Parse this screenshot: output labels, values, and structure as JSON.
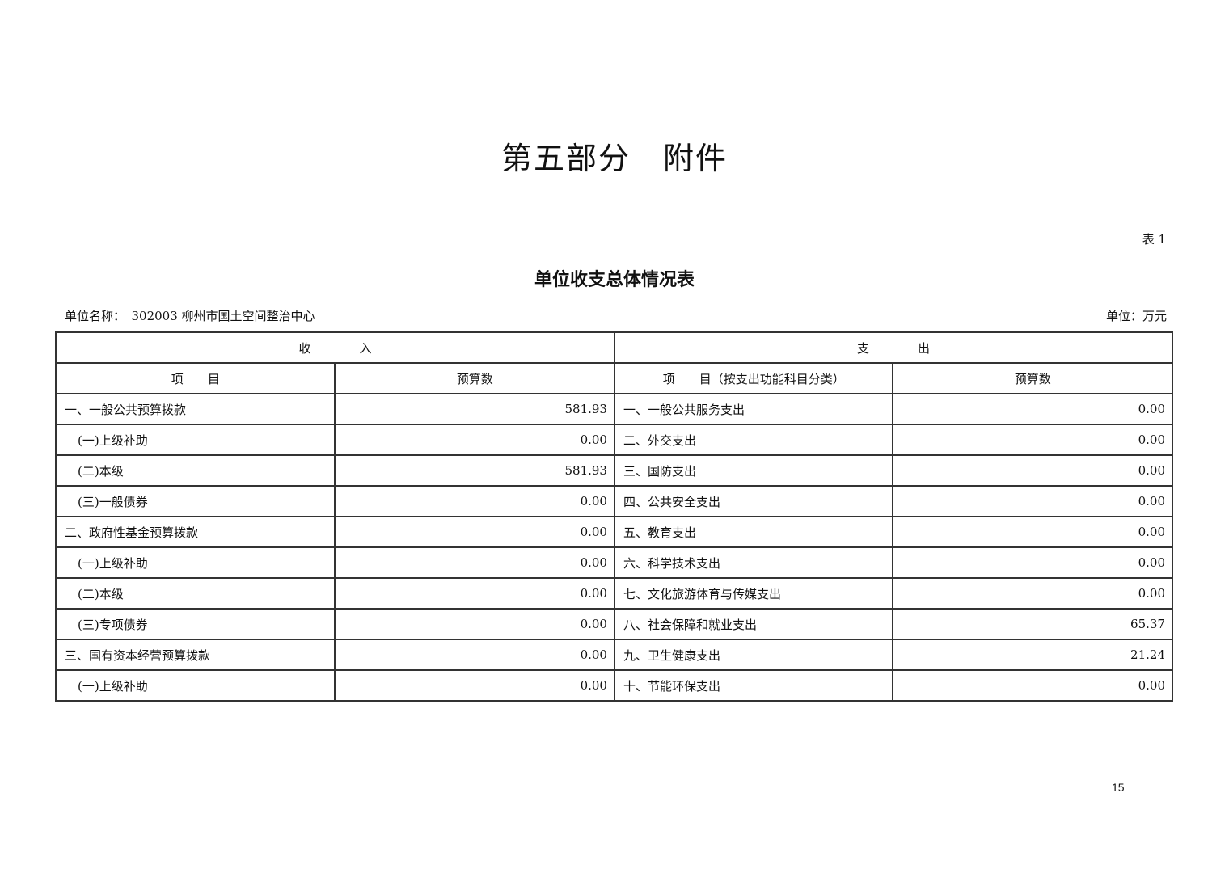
{
  "part_title": "第五部分　附件",
  "table_no": "表 1",
  "table_title": "单位收支总体情况表",
  "unit_name": "单位名称：　302003 柳州市国土空间整治中心",
  "unit": "单位：万元",
  "headers": {
    "income": "收　　　　入",
    "expense": "支　　　　出",
    "income_item": "项　　目",
    "income_budget": "预算数",
    "expense_item": "项　　目（按支出功能科目分类）",
    "expense_budget": "预算数"
  },
  "rows": [
    {
      "income_item": "一、一般公共预算拨款",
      "indent": false,
      "income_value": "581.93",
      "expense_item": "一、一般公共服务支出",
      "expense_value": "0.00"
    },
    {
      "income_item": "(一)上级补助",
      "indent": true,
      "income_value": "0.00",
      "expense_item": "二、外交支出",
      "expense_value": "0.00"
    },
    {
      "income_item": "(二)本级",
      "indent": true,
      "income_value": "581.93",
      "expense_item": "三、国防支出",
      "expense_value": "0.00"
    },
    {
      "income_item": "(三)一般债券",
      "indent": true,
      "income_value": "0.00",
      "expense_item": "四、公共安全支出",
      "expense_value": "0.00"
    },
    {
      "income_item": "二、政府性基金预算拨款",
      "indent": false,
      "income_value": "0.00",
      "expense_item": "五、教育支出",
      "expense_value": "0.00"
    },
    {
      "income_item": "(一)上级补助",
      "indent": true,
      "income_value": "0.00",
      "expense_item": "六、科学技术支出",
      "expense_value": "0.00"
    },
    {
      "income_item": "(二)本级",
      "indent": true,
      "income_value": "0.00",
      "expense_item": "七、文化旅游体育与传媒支出",
      "expense_value": "0.00"
    },
    {
      "income_item": "(三)专项债券",
      "indent": true,
      "income_value": "0.00",
      "expense_item": "八、社会保障和就业支出",
      "expense_value": "65.37"
    },
    {
      "income_item": "三、国有资本经营预算拨款",
      "indent": false,
      "income_value": "0.00",
      "expense_item": "九、卫生健康支出",
      "expense_value": "21.24"
    },
    {
      "income_item": "(一)上级补助",
      "indent": true,
      "income_value": "0.00",
      "expense_item": "十、节能环保支出",
      "expense_value": "0.00"
    }
  ],
  "page_number": "15"
}
